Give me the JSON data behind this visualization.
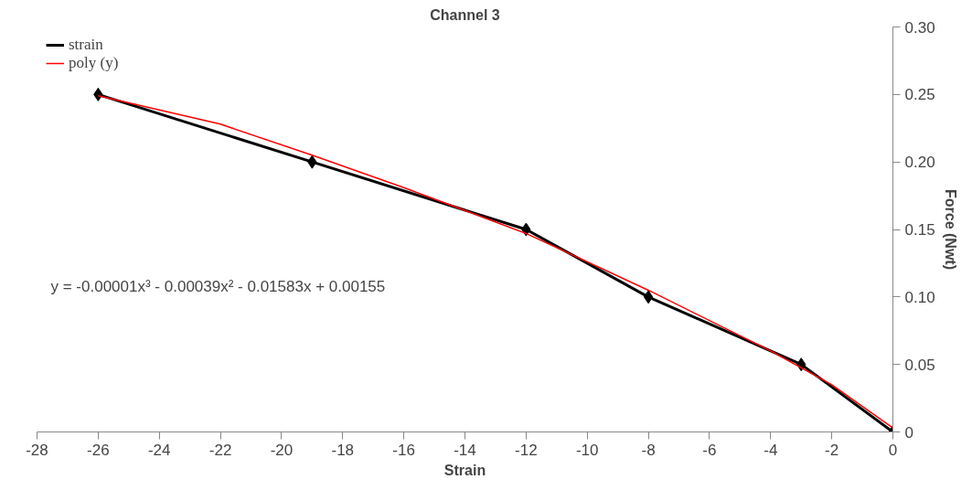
{
  "chart_data": {
    "type": "line",
    "title": "Channel 3",
    "xlabel": "Strain",
    "ylabel": "Force (Nwt)",
    "x": [
      -26,
      -19,
      -12,
      -8,
      -3,
      0
    ],
    "series": [
      {
        "name": "strain",
        "color": "#000000",
        "values": [
          0.25,
          0.2,
          0.15,
          0.1,
          0.05,
          0.0
        ],
        "marker": "diamond"
      },
      {
        "name": "poly (y)",
        "type": "line",
        "color": "#ff0000",
        "x": [
          -26,
          -22,
          -19,
          -16,
          -12,
          -8,
          -4,
          -2,
          0
        ],
        "values": [
          0.249,
          0.228,
          0.205,
          0.181,
          0.147,
          0.105,
          0.06,
          0.035,
          0.003
        ],
        "marker": "none"
      }
    ],
    "xlim": [
      -28,
      0
    ],
    "xticks": [
      -28,
      -26,
      -24,
      -22,
      -20,
      -18,
      -16,
      -14,
      -12,
      -10,
      -8,
      -6,
      -4,
      -2,
      0
    ],
    "ylim": [
      0,
      0.3
    ],
    "yticks": [
      {
        "value": 0,
        "label": "0"
      },
      {
        "value": 0.05,
        "label": "0.05"
      },
      {
        "value": 0.1,
        "label": "0.10"
      },
      {
        "value": 0.15,
        "label": "0.15"
      },
      {
        "value": 0.2,
        "label": "0.20"
      },
      {
        "value": 0.25,
        "label": "0.25"
      },
      {
        "value": 0.3,
        "label": "0.30"
      }
    ],
    "annotations": [
      "y = -0.00001x³ - 0.00039x² - 0.01583x + 0.00155"
    ],
    "grid": false,
    "legend": "top left"
  }
}
